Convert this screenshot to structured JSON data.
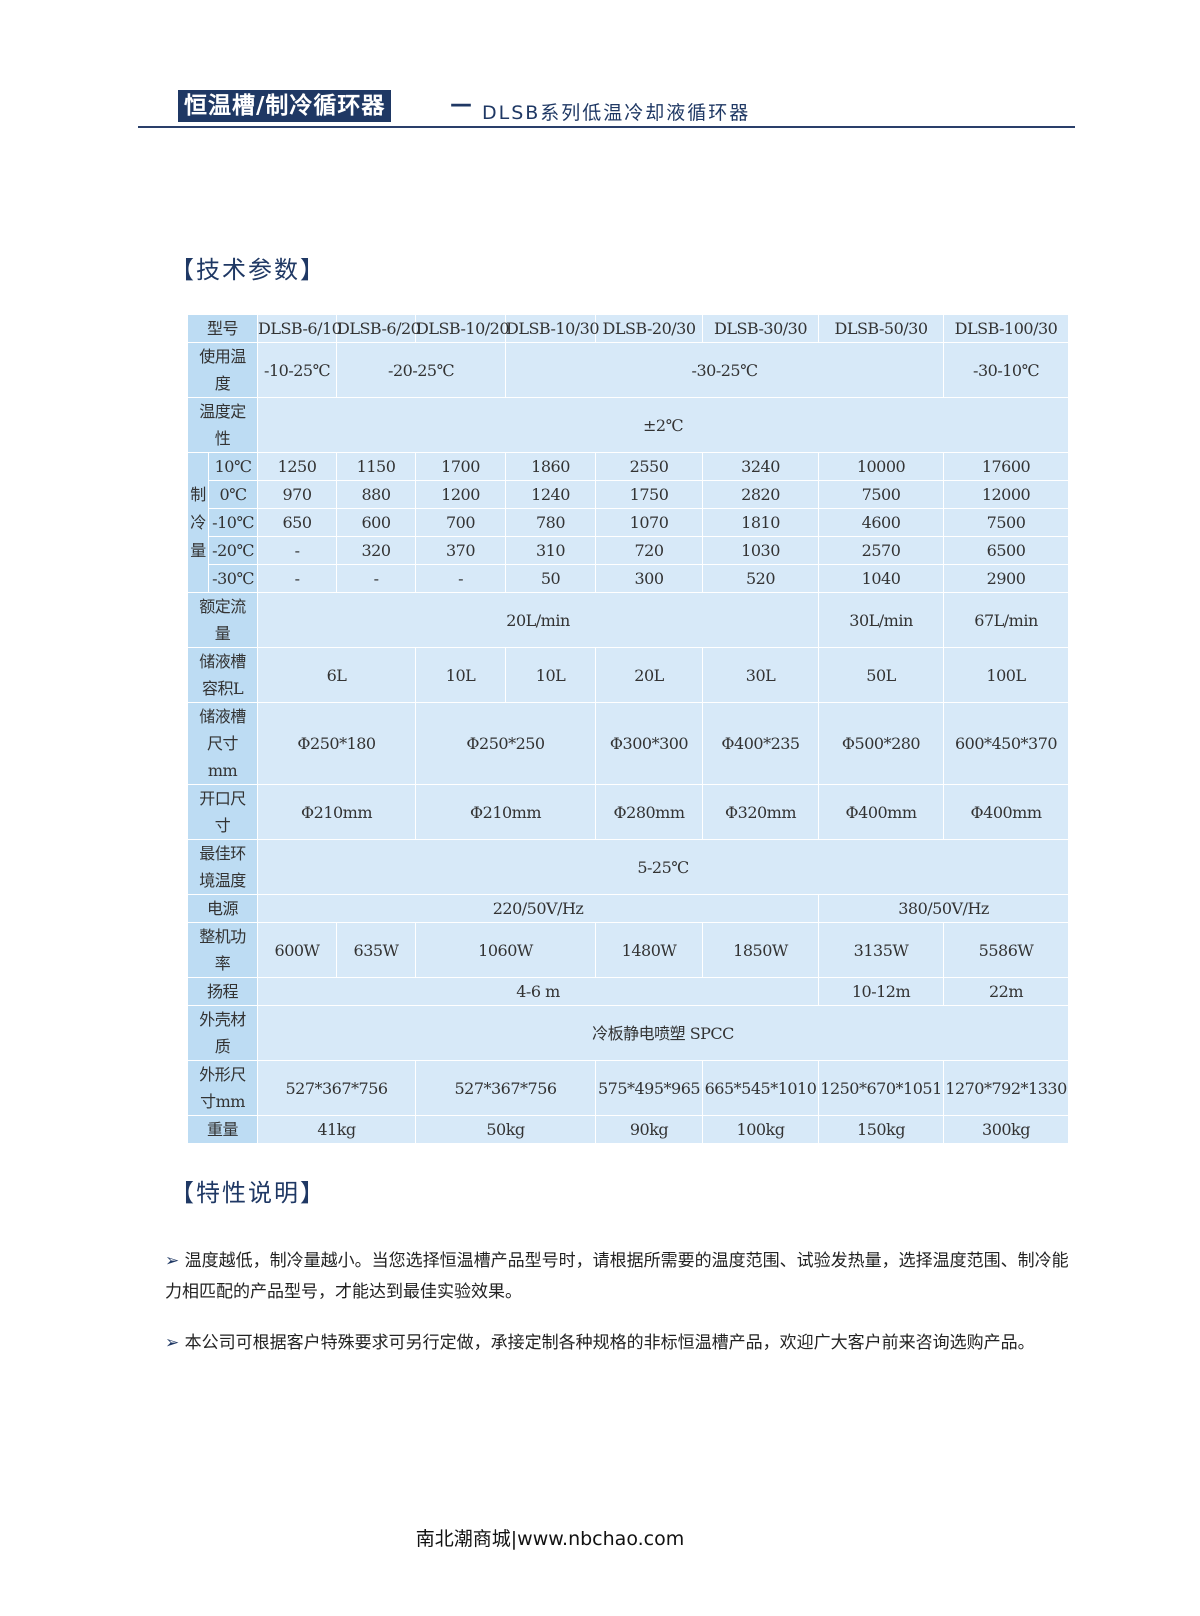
{
  "header": {
    "title": "恒温槽/制冷循环器",
    "dash": "—",
    "subtitle": "DLSB系列低温冷却液循环器"
  },
  "sections": {
    "specs": "【技术参数】",
    "features": "【特性说明】"
  },
  "table": {
    "rows": [
      {
        "label": "型号",
        "cells": [
          "DLSB-6/10",
          "DLSB-6/20",
          "DLSB-10/20",
          "DLSB-10/30",
          "DLSB-20/30",
          "DLSB-30/30",
          "DLSB-50/30",
          "DLSB-100/30"
        ]
      },
      {
        "label": "使用温度",
        "cells": [
          "-10-25℃",
          "-20-25℃",
          "-30-25℃",
          "-30-10℃"
        ]
      },
      {
        "label": "温度定性",
        "cells": [
          "±2℃"
        ]
      },
      {
        "label": "10℃",
        "group": "制冷量",
        "cells": [
          "1250",
          "1150",
          "1700",
          "1860",
          "2550",
          "3240",
          "10000",
          "17600"
        ]
      },
      {
        "label": "0℃",
        "cells": [
          "970",
          "880",
          "1200",
          "1240",
          "1750",
          "2820",
          "7500",
          "12000"
        ]
      },
      {
        "label": "-10℃",
        "cells": [
          "650",
          "600",
          "700",
          "780",
          "1070",
          "1810",
          "4600",
          "7500"
        ]
      },
      {
        "label": "-20℃",
        "cells": [
          "-",
          "320",
          "370",
          "310",
          "720",
          "1030",
          "2570",
          "6500"
        ]
      },
      {
        "label": "-30℃",
        "cells": [
          "-",
          "-",
          "-",
          "50",
          "300",
          "520",
          "1040",
          "2900"
        ]
      },
      {
        "label": "额定流量",
        "cells": [
          "20L/min",
          "30L/min",
          "67L/min"
        ]
      },
      {
        "label": "储液槽容积L",
        "cells": [
          "6L",
          "10L",
          "10L",
          "20L",
          "30L",
          "50L",
          "100L"
        ]
      },
      {
        "label": "储液槽尺寸mm",
        "cells": [
          "Φ250*180",
          "Φ250*250",
          "Φ300*300",
          "Φ400*235",
          "Φ500*280",
          "600*450*370"
        ]
      },
      {
        "label": "开口尺寸",
        "cells": [
          "Φ210mm",
          "Φ210mm",
          "Φ280mm",
          "Φ320mm",
          "Φ400mm",
          "Φ400mm"
        ]
      },
      {
        "label": "最佳环境温度",
        "cells": [
          "5-25℃"
        ]
      },
      {
        "label": "电源",
        "cells": [
          "220/50V/Hz",
          "380/50V/Hz"
        ]
      },
      {
        "label": "整机功率",
        "cells": [
          "600W",
          "635W",
          "1060W",
          "1480W",
          "1850W",
          "3135W",
          "5586W"
        ]
      },
      {
        "label": "扬程",
        "cells": [
          "4-6 m",
          "10-12m",
          "22m"
        ]
      },
      {
        "label": "外壳材质",
        "cells": [
          "冷板静电喷塑 SPCC"
        ]
      },
      {
        "label": "外形尺寸mm",
        "cells": [
          "527*367*756",
          "527*367*756",
          "575*495*965",
          "665*545*1010",
          "1250*670*1051",
          "1270*792*1330"
        ]
      },
      {
        "label": "重量",
        "cells": [
          "41kg",
          "50kg",
          "90kg",
          "100kg",
          "150kg",
          "300kg"
        ]
      }
    ]
  },
  "features": [
    {
      "bullet": "➢",
      "text": "温度越低，制冷量越小。当您选择恒温槽产品型号时，请根据所需要的温度范围、试验发热量，选择温度范围、制冷能力相匹配的产品型号，才能达到最佳实验效果。"
    },
    {
      "bullet": "➢",
      "text": "本公司可根据客户特殊要求可另行定做，承接定制各种规格的非标恒温槽产品，欢迎广大客户前来咨询选购产品。"
    }
  ],
  "footer": "南北潮商城|www.nbchao.com"
}
